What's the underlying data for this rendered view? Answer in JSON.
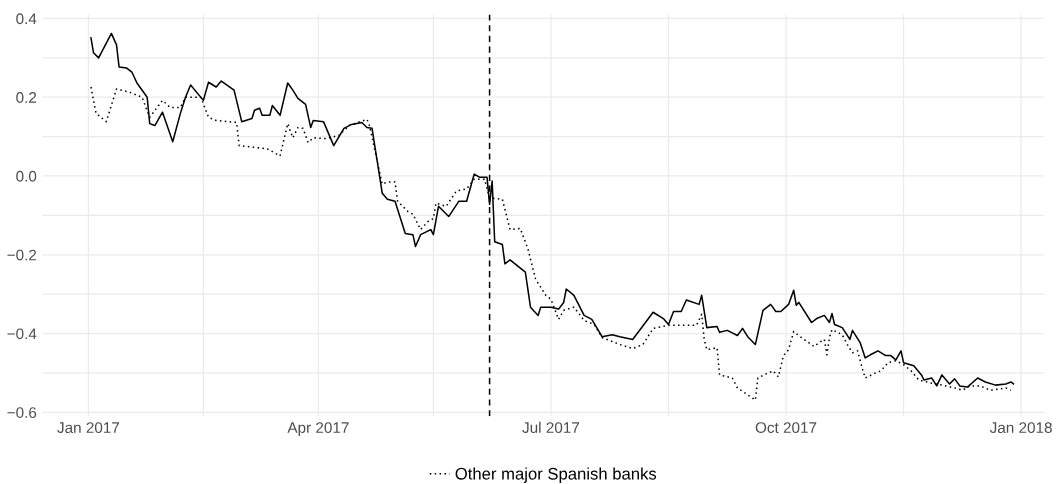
{
  "chart_data": {
    "type": "line",
    "xlim": [
      "2016-12-14",
      "2018-01-10"
    ],
    "xticks": [
      {
        "value": "2017-01-01",
        "label": "Jan 2017"
      },
      {
        "value": "2017-02-15",
        "label": null
      },
      {
        "value": "2017-04-01",
        "label": "Apr 2017"
      },
      {
        "value": "2017-05-16",
        "label": null
      },
      {
        "value": "2017-07-01",
        "label": "Jul 2017"
      },
      {
        "value": "2017-08-16",
        "label": null
      },
      {
        "value": "2017-10-01",
        "label": "Oct 2017"
      },
      {
        "value": "2017-11-16",
        "label": null
      },
      {
        "value": "2018-01-01",
        "label": "Jan 2018"
      }
    ],
    "ylim": [
      -0.61,
      0.41
    ],
    "yticks": [
      {
        "value": -0.6,
        "label": "−0.6"
      },
      {
        "value": -0.5,
        "label": null
      },
      {
        "value": -0.4,
        "label": "−0.4"
      },
      {
        "value": -0.3,
        "label": null
      },
      {
        "value": -0.2,
        "label": "−0.2"
      },
      {
        "value": -0.1,
        "label": null
      },
      {
        "value": 0.0,
        "label": "0.0"
      },
      {
        "value": 0.1,
        "label": null
      },
      {
        "value": 0.2,
        "label": "0.2"
      },
      {
        "value": 0.3,
        "label": null
      },
      {
        "value": 0.4,
        "label": "0.4"
      }
    ],
    "grid": true,
    "legend": "bottom",
    "series": [
      {
        "color": "#000000",
        "line_style": "solid",
        "x": [
          "2017-01-02",
          "2017-01-03",
          "2017-01-05",
          "2017-01-10",
          "2017-01-12",
          "2017-01-13",
          "2017-01-16",
          "2017-01-18",
          "2017-01-20",
          "2017-01-24",
          "2017-01-25",
          "2017-01-27",
          "2017-01-30",
          "2017-02-03",
          "2017-02-06",
          "2017-02-08",
          "2017-02-10",
          "2017-02-15",
          "2017-02-17",
          "2017-02-20",
          "2017-02-22",
          "2017-02-27",
          "2017-03-02",
          "2017-03-06",
          "2017-03-07",
          "2017-03-09",
          "2017-03-10",
          "2017-03-13",
          "2017-03-14",
          "2017-03-17",
          "2017-03-20",
          "2017-03-22",
          "2017-03-24",
          "2017-03-27",
          "2017-03-29",
          "2017-03-30",
          "2017-04-03",
          "2017-04-07",
          "2017-04-11",
          "2017-04-14",
          "2017-04-18",
          "2017-04-20",
          "2017-04-22",
          "2017-04-26",
          "2017-04-28",
          "2017-05-01",
          "2017-05-05",
          "2017-05-08",
          "2017-05-09",
          "2017-05-11",
          "2017-05-15",
          "2017-05-16",
          "2017-05-18",
          "2017-05-22",
          "2017-05-26",
          "2017-05-29",
          "2017-06-01",
          "2017-06-03",
          "2017-06-06",
          "2017-06-07",
          "2017-06-08",
          "2017-06-09",
          "2017-06-12",
          "2017-06-13",
          "2017-06-15",
          "2017-06-21",
          "2017-06-23",
          "2017-06-26",
          "2017-06-27",
          "2017-07-01",
          "2017-07-04",
          "2017-07-06",
          "2017-07-07",
          "2017-07-10",
          "2017-07-14",
          "2017-07-17",
          "2017-07-21",
          "2017-07-25",
          "2017-07-28",
          "2017-08-02",
          "2017-08-10",
          "2017-08-14",
          "2017-08-16",
          "2017-08-18",
          "2017-08-21",
          "2017-08-23",
          "2017-08-28",
          "2017-08-29",
          "2017-08-31",
          "2017-09-04",
          "2017-09-05",
          "2017-09-08",
          "2017-09-12",
          "2017-09-14",
          "2017-09-16",
          "2017-09-19",
          "2017-09-22",
          "2017-09-25",
          "2017-09-27",
          "2017-09-29",
          "2017-10-02",
          "2017-10-04",
          "2017-10-05",
          "2017-10-06",
          "2017-10-11",
          "2017-10-13",
          "2017-10-16",
          "2017-10-18",
          "2017-10-19",
          "2017-10-20",
          "2017-10-23",
          "2017-10-26",
          "2017-10-27",
          "2017-10-30",
          "2017-11-01",
          "2017-11-03",
          "2017-11-06",
          "2017-11-09",
          "2017-11-11",
          "2017-11-13",
          "2017-11-15",
          "2017-11-16",
          "2017-11-20",
          "2017-11-23",
          "2017-11-24",
          "2017-11-27",
          "2017-11-29",
          "2017-12-01",
          "2017-12-04",
          "2017-12-06",
          "2017-12-08",
          "2017-12-11",
          "2017-12-15",
          "2017-12-18",
          "2017-12-22",
          "2017-12-26",
          "2017-12-28",
          "2017-12-29"
        ],
        "values": [
          0.351,
          0.313,
          0.3,
          0.362,
          0.333,
          0.277,
          0.274,
          0.264,
          0.236,
          0.2,
          0.133,
          0.128,
          0.162,
          0.087,
          0.159,
          0.2,
          0.231,
          0.192,
          0.238,
          0.226,
          0.241,
          0.218,
          0.138,
          0.146,
          0.167,
          0.172,
          0.154,
          0.154,
          0.179,
          0.154,
          0.236,
          0.218,
          0.197,
          0.182,
          0.123,
          0.141,
          0.138,
          0.077,
          0.121,
          0.131,
          0.136,
          0.123,
          0.121,
          -0.044,
          -0.059,
          -0.064,
          -0.146,
          -0.149,
          -0.179,
          -0.149,
          -0.136,
          -0.149,
          -0.077,
          -0.103,
          -0.064,
          -0.064,
          0.005,
          -0.003,
          -0.003,
          -0.072,
          -0.013,
          -0.167,
          -0.174,
          -0.223,
          -0.213,
          -0.244,
          -0.333,
          -0.354,
          -0.333,
          -0.333,
          -0.338,
          -0.321,
          -0.287,
          -0.303,
          -0.354,
          -0.364,
          -0.408,
          -0.403,
          -0.408,
          -0.415,
          -0.346,
          -0.362,
          -0.377,
          -0.344,
          -0.344,
          -0.315,
          -0.326,
          -0.303,
          -0.385,
          -0.382,
          -0.397,
          -0.392,
          -0.405,
          -0.387,
          -0.408,
          -0.428,
          -0.341,
          -0.326,
          -0.344,
          -0.344,
          -0.326,
          -0.29,
          -0.328,
          -0.321,
          -0.372,
          -0.362,
          -0.354,
          -0.372,
          -0.349,
          -0.377,
          -0.385,
          -0.415,
          -0.392,
          -0.423,
          -0.462,
          -0.454,
          -0.444,
          -0.456,
          -0.456,
          -0.467,
          -0.444,
          -0.474,
          -0.482,
          -0.505,
          -0.518,
          -0.513,
          -0.533,
          -0.505,
          -0.528,
          -0.515,
          -0.533,
          -0.536,
          -0.513,
          -0.523,
          -0.531,
          -0.528,
          -0.523,
          -0.528
        ]
      },
      {
        "name": "Other major Spanish banks",
        "color": "#000000",
        "line_style": "dotted",
        "x": [
          "2017-01-02",
          "2017-01-04",
          "2017-01-08",
          "2017-01-12",
          "2017-01-17",
          "2017-01-22",
          "2017-01-25",
          "2017-01-30",
          "2017-02-02",
          "2017-02-06",
          "2017-02-08",
          "2017-02-14",
          "2017-02-17",
          "2017-02-20",
          "2017-02-28",
          "2017-03-01",
          "2017-03-08",
          "2017-03-12",
          "2017-03-17",
          "2017-03-20",
          "2017-03-22",
          "2017-03-24",
          "2017-03-26",
          "2017-03-28",
          "2017-03-30",
          "2017-04-04",
          "2017-04-09",
          "2017-04-13",
          "2017-04-20",
          "2017-04-21",
          "2017-04-26",
          "2017-04-28",
          "2017-05-01",
          "2017-05-02",
          "2017-05-06",
          "2017-05-08",
          "2017-05-11",
          "2017-05-14",
          "2017-05-16",
          "2017-05-17",
          "2017-05-21",
          "2017-05-25",
          "2017-05-29",
          "2017-06-01",
          "2017-06-05",
          "2017-06-07",
          "2017-06-12",
          "2017-06-15",
          "2017-06-19",
          "2017-06-22",
          "2017-06-25",
          "2017-06-29",
          "2017-07-01",
          "2017-07-04",
          "2017-07-06",
          "2017-07-10",
          "2017-07-14",
          "2017-07-18",
          "2017-07-21",
          "2017-07-28",
          "2017-08-02",
          "2017-08-06",
          "2017-08-10",
          "2017-08-16",
          "2017-08-21",
          "2017-08-27",
          "2017-08-29",
          "2017-08-30",
          "2017-08-31",
          "2017-09-04",
          "2017-09-05",
          "2017-09-10",
          "2017-09-12",
          "2017-09-19",
          "2017-09-20",
          "2017-09-23",
          "2017-09-26",
          "2017-09-28",
          "2017-09-30",
          "2017-10-02",
          "2017-10-04",
          "2017-10-07",
          "2017-10-12",
          "2017-10-14",
          "2017-10-16",
          "2017-10-17",
          "2017-10-18",
          "2017-10-19",
          "2017-10-23",
          "2017-10-25",
          "2017-10-27",
          "2017-10-29",
          "2017-10-31",
          "2017-11-01",
          "2017-11-05",
          "2017-11-07",
          "2017-11-10",
          "2017-11-13",
          "2017-11-16",
          "2017-11-19",
          "2017-11-22",
          "2017-11-27",
          "2017-12-01",
          "2017-12-06",
          "2017-12-09",
          "2017-12-12",
          "2017-12-16",
          "2017-12-20",
          "2017-12-23",
          "2017-12-26",
          "2017-12-28"
        ],
        "values": [
          0.226,
          0.159,
          0.138,
          0.221,
          0.213,
          0.2,
          0.149,
          0.192,
          0.174,
          0.174,
          0.2,
          0.2,
          0.149,
          0.141,
          0.136,
          0.077,
          0.072,
          0.069,
          0.051,
          0.133,
          0.097,
          0.123,
          0.121,
          0.085,
          0.097,
          0.095,
          0.103,
          0.128,
          0.144,
          0.128,
          -0.021,
          -0.015,
          -0.015,
          -0.064,
          -0.09,
          -0.097,
          -0.136,
          -0.115,
          -0.108,
          -0.069,
          -0.077,
          -0.038,
          -0.033,
          -0.008,
          -0.008,
          -0.056,
          -0.059,
          -0.136,
          -0.133,
          -0.185,
          -0.262,
          -0.303,
          -0.313,
          -0.364,
          -0.341,
          -0.333,
          -0.367,
          -0.377,
          -0.41,
          -0.428,
          -0.438,
          -0.428,
          -0.387,
          -0.379,
          -0.379,
          -0.379,
          -0.351,
          -0.415,
          -0.441,
          -0.436,
          -0.505,
          -0.513,
          -0.538,
          -0.569,
          -0.513,
          -0.503,
          -0.495,
          -0.51,
          -0.456,
          -0.441,
          -0.395,
          -0.41,
          -0.433,
          -0.423,
          -0.415,
          -0.454,
          -0.41,
          -0.39,
          -0.403,
          -0.428,
          -0.449,
          -0.444,
          -0.492,
          -0.513,
          -0.5,
          -0.495,
          -0.474,
          -0.469,
          -0.479,
          -0.495,
          -0.518,
          -0.526,
          -0.531,
          -0.538,
          -0.544,
          -0.533,
          -0.533,
          -0.544,
          -0.541,
          -0.538,
          -0.544
        ]
      }
    ],
    "ref_lines": [
      {
        "axis": "x",
        "value": "2017-06-07",
        "color": "#000000",
        "line_style": "dashed"
      }
    ]
  }
}
